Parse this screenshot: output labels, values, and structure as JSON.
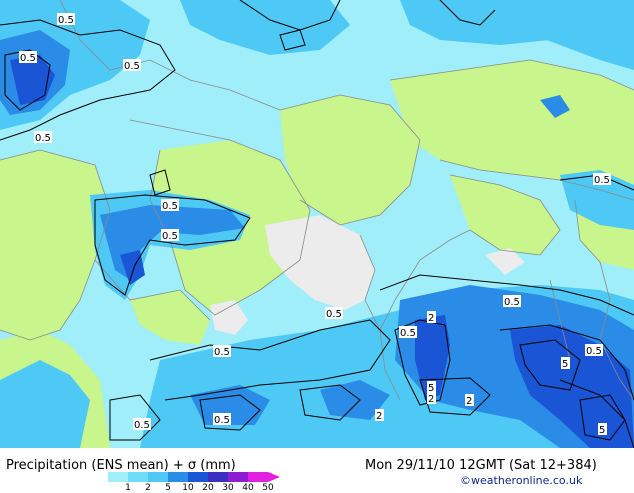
{
  "map": {
    "colors": {
      "land": "#c8f58c",
      "light_precip": "#9feefa",
      "medium_precip": "#4ec8f4",
      "heavy_precip": "#2a8ce6",
      "very_heavy_precip": "#1a55d6",
      "dry_grey": "#ececec",
      "borders": "#8a8a8a",
      "contour": "#000000"
    },
    "contour_labels": [
      "0.5",
      "0.5",
      "0.5",
      "0.5",
      "0.5",
      "0.5",
      "0.5",
      "0.5",
      "0.5",
      "0.5",
      "0.5",
      "0.5",
      "0.5",
      "2",
      "0.5",
      "5",
      "2",
      "2",
      "2",
      "5",
      "5"
    ]
  },
  "footer": {
    "title": "Precipitation (ENS mean) + σ (mm)",
    "datetime": "Mon 29/11/10 12GMT  (Sat 12+384)",
    "credit": "©weatheronline.co.uk"
  },
  "legend": {
    "ticks": [
      "1",
      "2",
      "5",
      "10",
      "20",
      "30",
      "40",
      "50"
    ],
    "colors": [
      "#9feefa",
      "#6fdcf8",
      "#4ec8f4",
      "#2a8ce6",
      "#1a55d6",
      "#3a2fc0",
      "#8c1ed2",
      "#e21ee0"
    ]
  }
}
